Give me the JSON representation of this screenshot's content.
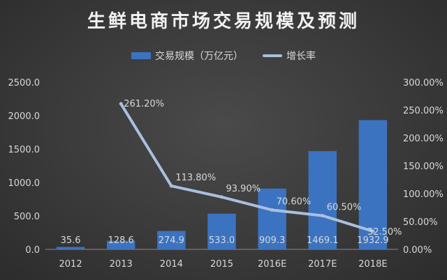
{
  "chart_data": {
    "type": "bar",
    "title": "生鲜电商市场交易规模及预测",
    "categories": [
      "2012",
      "2013",
      "2014",
      "2015",
      "2016E",
      "2017E",
      "2018E"
    ],
    "series": [
      {
        "name": "交易规模（万亿元）",
        "type": "bar",
        "axis": "left",
        "values": [
          35.6,
          128.6,
          274.9,
          533.0,
          909.3,
          1469.1,
          1932.9
        ],
        "labels": [
          "35.6",
          "128.6",
          "274.9",
          "533.0",
          "909.3",
          "1469.1",
          "1932.9"
        ]
      },
      {
        "name": "增长率",
        "type": "line",
        "axis": "right",
        "values": [
          null,
          261.2,
          113.8,
          93.9,
          70.6,
          60.5,
          32.5
        ],
        "labels": [
          "",
          "261.20%",
          "113.80%",
          "93.90%",
          "70.60%",
          "60.50%",
          "32.50%"
        ]
      }
    ],
    "y_left": {
      "min": 0,
      "max": 2500,
      "ticks": [
        "0.0",
        "500.0",
        "1000.0",
        "1500.0",
        "2000.0",
        "2500.0"
      ]
    },
    "y_right": {
      "min": 0,
      "max": 300,
      "ticks": [
        "0.00%",
        "50.00%",
        "100.00%",
        "150.00%",
        "200.00%",
        "250.00%",
        "300.00%"
      ]
    },
    "grid": false,
    "legend_position": "top",
    "colors": {
      "bar": "#3b73c0",
      "line": "#a9c0de"
    }
  }
}
